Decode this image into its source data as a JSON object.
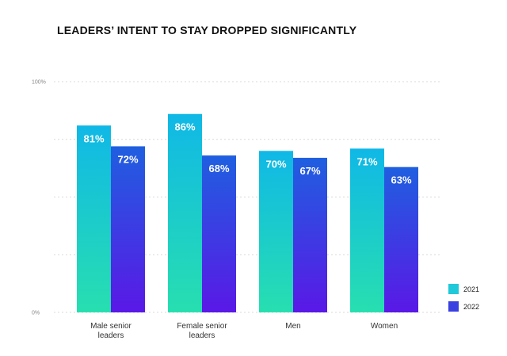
{
  "chart_data": {
    "type": "bar",
    "title": "LEADERS’ INTENT TO STAY DROPPED SIGNIFICANTLY",
    "categories": [
      [
        "Male senior",
        "leaders"
      ],
      [
        "Female senior",
        "leaders"
      ],
      [
        "Men"
      ],
      [
        "Women"
      ]
    ],
    "series": [
      {
        "name": "2021",
        "values": [
          81,
          86,
          70,
          71
        ],
        "labels": [
          "81%",
          "86%",
          "70%",
          "71%"
        ],
        "color_top": "#10b8e6",
        "color_bottom": "#27dfb0"
      },
      {
        "name": "2022",
        "values": [
          72,
          68,
          67,
          63
        ],
        "labels": [
          "72%",
          "68%",
          "67%",
          "63%"
        ],
        "color_top": "#1f5fe0",
        "color_bottom": "#5a18e6"
      }
    ],
    "ylim": [
      0,
      100
    ],
    "yticks": [
      {
        "value": 100,
        "label": "100%"
      },
      {
        "value": 75,
        "label": ""
      },
      {
        "value": 50,
        "label": ""
      },
      {
        "value": 25,
        "label": ""
      },
      {
        "value": 0,
        "label": "0%"
      }
    ],
    "legend": {
      "position": "bottom-right",
      "items": [
        {
          "label": "2021",
          "color": "#20c9d9"
        },
        {
          "label": "2022",
          "color": "#3a3fe0"
        }
      ]
    },
    "grid": true
  }
}
